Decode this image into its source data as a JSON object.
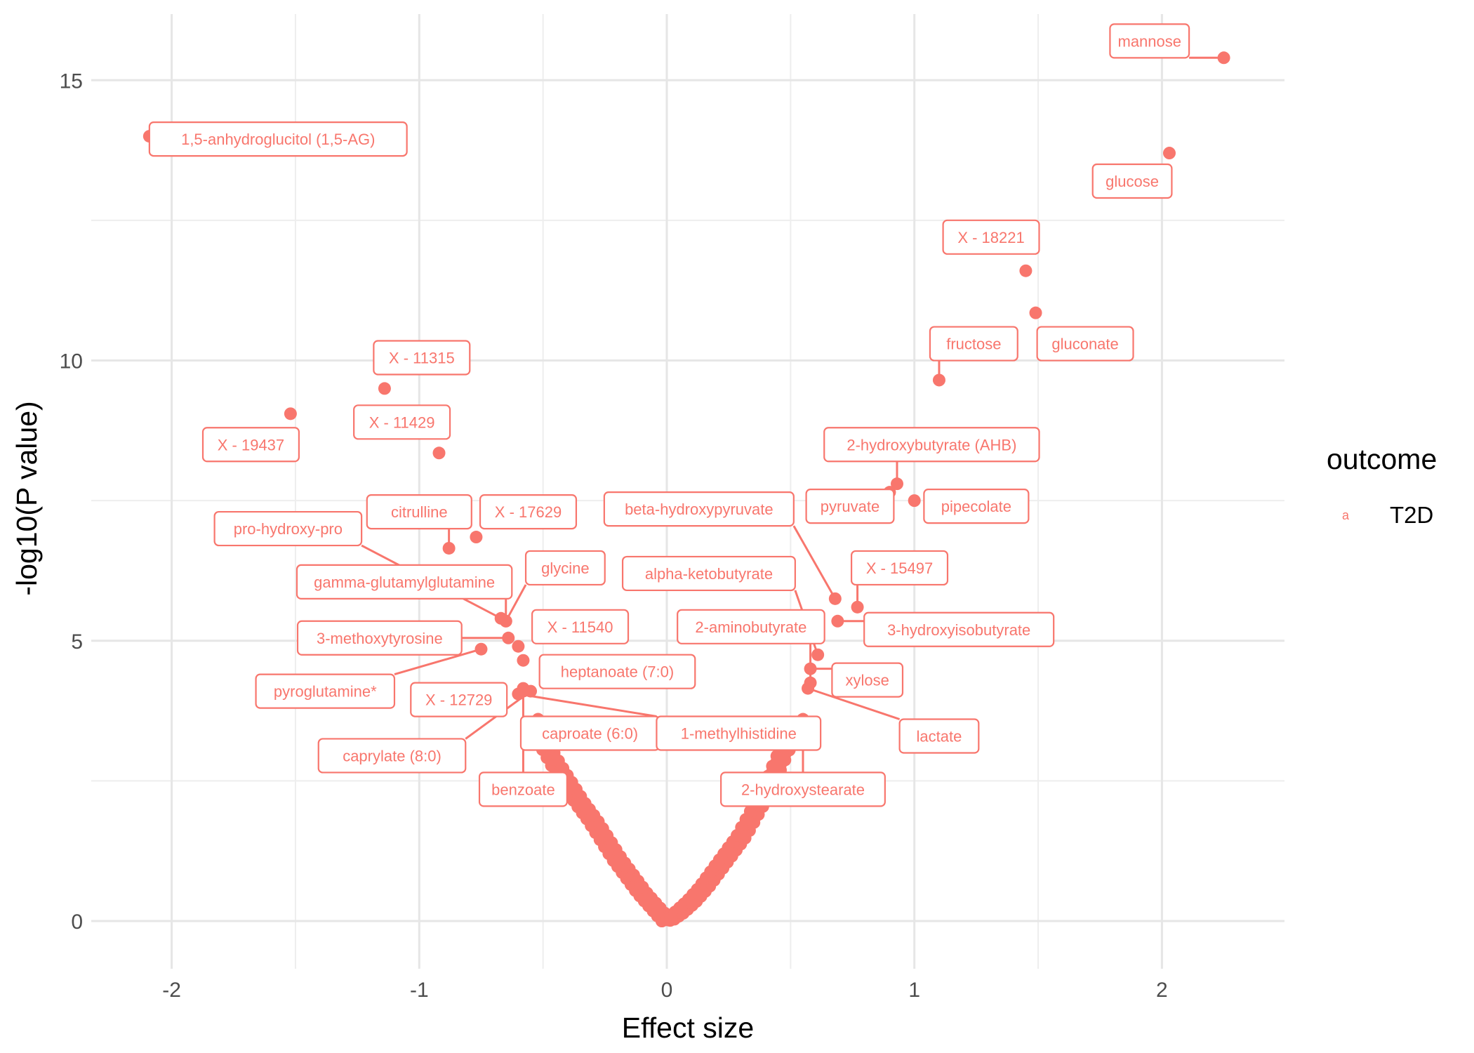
{
  "chart_data": {
    "type": "scatter",
    "title": "",
    "xlabel": "Effect size",
    "ylabel": "-log10(P value)",
    "xlim": [
      -2.3,
      2.35
    ],
    "ylim": [
      -0.6,
      16.2
    ],
    "x_ticks": [
      "-2",
      "-1",
      "0",
      "1",
      "2"
    ],
    "y_ticks": [
      "0",
      "5",
      "10",
      "15"
    ],
    "grid": true,
    "color": "#F8766D",
    "legend": {
      "title": "outcome",
      "key_glyph": "a",
      "entries": [
        "T2D"
      ],
      "position": "right"
    },
    "labeled_points": [
      {
        "name": "mannose",
        "x": 2.25,
        "y": 15.4
      },
      {
        "name": "1,5-anhydroglucitol (1,5-AG)",
        "x": -2.09,
        "y": 14.0
      },
      {
        "name": "glucose",
        "x": 2.03,
        "y": 13.7
      },
      {
        "name": "X - 18221",
        "x": 1.45,
        "y": 11.6
      },
      {
        "name": "gluconate",
        "x": 1.49,
        "y": 10.85
      },
      {
        "name": "fructose",
        "x": 1.1,
        "y": 9.65
      },
      {
        "name": "X - 11315",
        "x": -1.14,
        "y": 9.5
      },
      {
        "name": "X - 19437",
        "x": -1.52,
        "y": 9.05
      },
      {
        "name": "X - 11429",
        "x": -0.92,
        "y": 8.35
      },
      {
        "name": "2-hydroxybutyrate (AHB)",
        "x": 0.93,
        "y": 7.8
      },
      {
        "name": "pyruvate",
        "x": 0.9,
        "y": 7.65
      },
      {
        "name": "pipecolate",
        "x": 1.0,
        "y": 7.5
      },
      {
        "name": "X - 17629",
        "x": -0.77,
        "y": 6.85
      },
      {
        "name": "citrulline",
        "x": -0.88,
        "y": 6.65
      },
      {
        "name": "X - 15497",
        "x": 0.77,
        "y": 5.6
      },
      {
        "name": "beta-hydroxypyruvate",
        "x": 0.68,
        "y": 5.75
      },
      {
        "name": "3-hydroxyisobutyrate",
        "x": 0.69,
        "y": 5.35
      },
      {
        "name": "pro-hydroxy-pro",
        "x": -0.67,
        "y": 5.4
      },
      {
        "name": "gamma-glutamylglutamine",
        "x": -0.65,
        "y": 5.35
      },
      {
        "name": "glycine",
        "x": -0.65,
        "y": 5.35
      },
      {
        "name": "X - 11540",
        "x": -0.6,
        "y": 4.9
      },
      {
        "name": "3-methoxytyrosine",
        "x": -0.64,
        "y": 5.05
      },
      {
        "name": "pyroglutamine*",
        "x": -0.75,
        "y": 4.85
      },
      {
        "name": "heptanoate (7:0)",
        "x": -0.58,
        "y": 4.65
      },
      {
        "name": "X - 12729",
        "x": -0.58,
        "y": 4.15
      },
      {
        "name": "caprylate (8:0)",
        "x": -0.55,
        "y": 4.1
      },
      {
        "name": "benzoate",
        "x": -0.58,
        "y": 4.1
      },
      {
        "name": "caproate (6:0)",
        "x": -0.52,
        "y": 3.6
      },
      {
        "name": "1-methylhistidine",
        "x": -0.6,
        "y": 4.05
      },
      {
        "name": "alpha-ketobutyrate",
        "x": 0.61,
        "y": 4.75
      },
      {
        "name": "2-aminobutyrate",
        "x": 0.58,
        "y": 4.25
      },
      {
        "name": "xylose",
        "x": 0.58,
        "y": 4.5
      },
      {
        "name": "lactate",
        "x": 0.57,
        "y": 4.15
      },
      {
        "name": "2-hydroxystearate",
        "x": 0.55,
        "y": 3.6
      }
    ],
    "background_curve": {
      "description": "points along y = k*|x| for |x| up to ~0.5",
      "negative_side": [
        [
          -0.05,
          0.25
        ],
        [
          -0.1,
          0.5
        ],
        [
          -0.15,
          0.8
        ],
        [
          -0.2,
          1.1
        ],
        [
          -0.25,
          1.45
        ],
        [
          -0.3,
          1.8
        ],
        [
          -0.35,
          2.1
        ],
        [
          -0.4,
          2.45
        ],
        [
          -0.45,
          2.8
        ],
        [
          -0.5,
          3.2
        ]
      ],
      "positive_side": [
        [
          0.05,
          0.15
        ],
        [
          0.1,
          0.35
        ],
        [
          0.15,
          0.6
        ],
        [
          0.2,
          0.9
        ],
        [
          0.25,
          1.2
        ],
        [
          0.3,
          1.5
        ],
        [
          0.35,
          1.9
        ],
        [
          0.4,
          2.3
        ],
        [
          0.45,
          2.8
        ],
        [
          0.5,
          3.3
        ]
      ]
    },
    "labels": [
      {
        "text": "mannose",
        "lx": 1.95,
        "ly": 15.7
      },
      {
        "text": "1,5-anhydroglucitol (1,5-AG)",
        "lx": -1.57,
        "ly": 13.95
      },
      {
        "text": "glucose",
        "lx": 1.88,
        "ly": 13.2
      },
      {
        "text": "X - 18221",
        "lx": 1.31,
        "ly": 12.2
      },
      {
        "text": "gluconate",
        "lx": 1.69,
        "ly": 10.3
      },
      {
        "text": "fructose",
        "lx": 1.24,
        "ly": 10.3
      },
      {
        "text": "X - 11315",
        "lx": -0.99,
        "ly": 10.05
      },
      {
        "text": "X - 19437",
        "lx": -1.68,
        "ly": 8.5
      },
      {
        "text": "X - 11429",
        "lx": -1.07,
        "ly": 8.9
      },
      {
        "text": "2-hydroxybutyrate (AHB)",
        "lx": 1.07,
        "ly": 8.5
      },
      {
        "text": "pyruvate",
        "lx": 0.74,
        "ly": 7.4
      },
      {
        "text": "pipecolate",
        "lx": 1.25,
        "ly": 7.4
      },
      {
        "text": "X - 17629",
        "lx": -0.56,
        "ly": 7.3
      },
      {
        "text": "citrulline",
        "lx": -1.0,
        "ly": 7.3
      },
      {
        "text": "X - 15497",
        "lx": 0.94,
        "ly": 6.3
      },
      {
        "text": "beta-hydroxypyruvate",
        "lx": 0.13,
        "ly": 7.35
      },
      {
        "text": "3-hydroxyisobutyrate",
        "lx": 1.18,
        "ly": 5.2
      },
      {
        "text": "pro-hydroxy-pro",
        "lx": -1.53,
        "ly": 7.0
      },
      {
        "text": "gamma-glutamylglutamine",
        "lx": -1.06,
        "ly": 6.05
      },
      {
        "text": "glycine",
        "lx": -0.41,
        "ly": 6.3
      },
      {
        "text": "X - 11540",
        "lx": -0.35,
        "ly": 5.25
      },
      {
        "text": "3-methoxytyrosine",
        "lx": -1.16,
        "ly": 5.05
      },
      {
        "text": "pyroglutamine*",
        "lx": -1.38,
        "ly": 4.1
      },
      {
        "text": "heptanoate (7:0)",
        "lx": -0.2,
        "ly": 4.45
      },
      {
        "text": "X - 12729",
        "lx": -0.84,
        "ly": 3.95
      },
      {
        "text": "caprylate (8:0)",
        "lx": -1.11,
        "ly": 2.95
      },
      {
        "text": "benzoate",
        "lx": -0.58,
        "ly": 2.35
      },
      {
        "text": "caproate (6:0)",
        "lx": -0.31,
        "ly": 3.35
      },
      {
        "text": "1-methylhistidine",
        "lx": 0.29,
        "ly": 3.35
      },
      {
        "text": "alpha-ketobutyrate",
        "lx": 0.17,
        "ly": 6.2
      },
      {
        "text": "2-aminobutyrate",
        "lx": 0.34,
        "ly": 5.25
      },
      {
        "text": "xylose",
        "lx": 0.81,
        "ly": 4.3
      },
      {
        "text": "lactate",
        "lx": 1.1,
        "ly": 3.3
      },
      {
        "text": "2-hydroxystearate",
        "lx": 0.55,
        "ly": 2.35
      }
    ]
  }
}
